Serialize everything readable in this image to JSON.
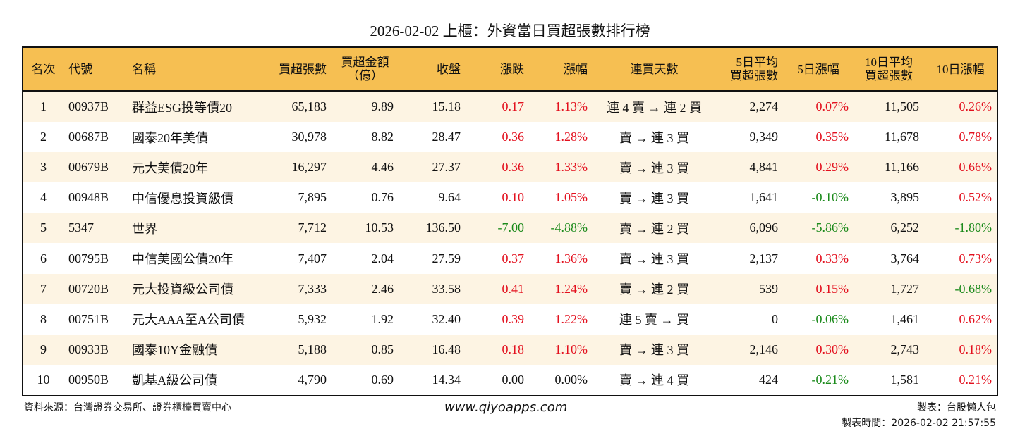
{
  "title": "2026-02-02 上櫃：外資當日買超張數排行榜",
  "headers": [
    "名次",
    "代號",
    "名稱",
    "買超張數",
    "買超金額\n（億）",
    "收盤",
    "漲跌",
    "漲幅",
    "連買天數",
    "5日平均\n買超張數",
    "5日漲幅",
    "10日平均\n買超張數",
    "10日漲幅"
  ],
  "colors": {
    "header_bg": "#F6BF52",
    "row_alt_bg": "#FDF4E3",
    "up": "#E3101E",
    "down": "#1B8A1B"
  },
  "rows": [
    [
      "1",
      "00937B",
      "群益ESG投等債20",
      "65,183",
      "9.89",
      "15.18",
      "0.17",
      "1.13%",
      "連 4 賣 → 連 2 買",
      "2,274",
      "0.07%",
      "11,505",
      "0.26%"
    ],
    [
      "2",
      "00687B",
      "國泰20年美債",
      "30,978",
      "8.82",
      "28.47",
      "0.36",
      "1.28%",
      "賣 → 連 3 買",
      "9,349",
      "0.35%",
      "11,678",
      "0.78%"
    ],
    [
      "3",
      "00679B",
      "元大美債20年",
      "16,297",
      "4.46",
      "27.37",
      "0.36",
      "1.33%",
      "賣 → 連 3 買",
      "4,841",
      "0.29%",
      "11,166",
      "0.66%"
    ],
    [
      "4",
      "00948B",
      "中信優息投資級債",
      "7,895",
      "0.76",
      "9.64",
      "0.10",
      "1.05%",
      "賣 → 連 3 買",
      "1,641",
      "-0.10%",
      "3,895",
      "0.52%"
    ],
    [
      "5",
      "5347",
      "世界",
      "7,712",
      "10.53",
      "136.50",
      "-7.00",
      "-4.88%",
      "賣 → 連 2 買",
      "6,096",
      "-5.86%",
      "6,252",
      "-1.80%"
    ],
    [
      "6",
      "00795B",
      "中信美國公債20年",
      "7,407",
      "2.04",
      "27.59",
      "0.37",
      "1.36%",
      "賣 → 連 3 買",
      "2,137",
      "0.33%",
      "3,764",
      "0.73%"
    ],
    [
      "7",
      "00720B",
      "元大投資級公司債",
      "7,333",
      "2.46",
      "33.58",
      "0.41",
      "1.24%",
      "賣 → 連 2 買",
      "539",
      "0.15%",
      "1,727",
      "-0.68%"
    ],
    [
      "8",
      "00751B",
      "元大AAA至A公司債",
      "5,932",
      "1.92",
      "32.40",
      "0.39",
      "1.22%",
      "連 5 賣 → 買",
      "0",
      "-0.06%",
      "1,461",
      "0.62%"
    ],
    [
      "9",
      "00933B",
      "國泰10Y金融債",
      "5,188",
      "0.85",
      "16.48",
      "0.18",
      "1.10%",
      "賣 → 連 3 買",
      "2,146",
      "0.30%",
      "2,743",
      "0.18%"
    ],
    [
      "10",
      "00950B",
      "凱基A級公司債",
      "4,790",
      "0.69",
      "14.34",
      "0.00",
      "0.00%",
      "賣 → 連 4 買",
      "424",
      "-0.21%",
      "1,581",
      "0.21%"
    ]
  ],
  "footer": {
    "source": "資料來源：台灣證券交易所、證券櫃檯買賣中心",
    "website": "www.qiyoapps.com",
    "maker": "製表：台股懶人包",
    "time": "製表時間：2026-02-02 21:57:55"
  }
}
